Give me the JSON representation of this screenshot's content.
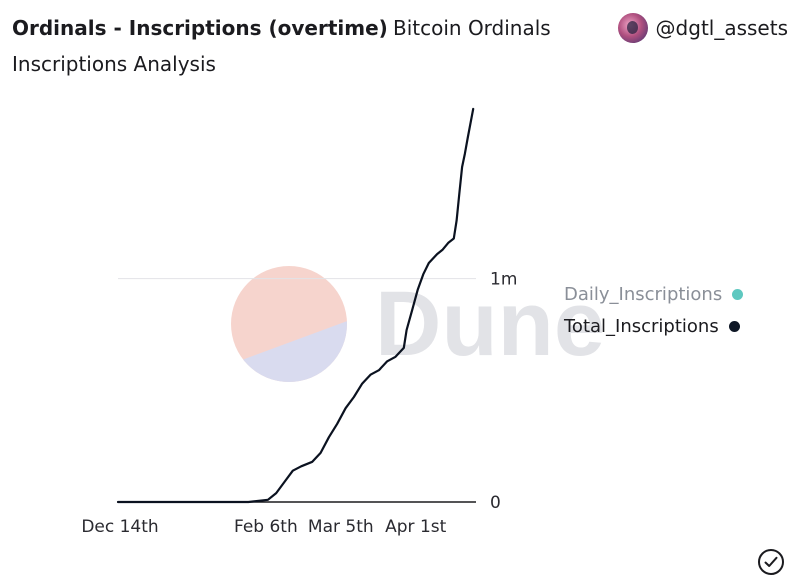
{
  "header": {
    "title": "Ordinals - Inscriptions (overtime)",
    "query_name": "Bitcoin Ordinals",
    "subtitle": "Inscriptions Analysis",
    "author": "@dgtl_assets"
  },
  "watermark": {
    "text": "Dune"
  },
  "colors": {
    "total_line": "#0b1220",
    "daily_dot": "#5ec8c0",
    "total_dot": "#0e1726",
    "logo_top": "#f4c6bd",
    "logo_bottom": "#cdd0ea"
  },
  "chart_data": {
    "type": "line",
    "title": "Ordinals - Inscriptions (overtime)",
    "xlabel": "",
    "ylabel": "",
    "x_ticks": [
      "Dec 14th",
      "Feb 6th",
      "Mar 5th",
      "Apr 1st"
    ],
    "x_range": [
      "2022-12-14",
      "2023-04-22"
    ],
    "ylim": [
      0,
      1.8
    ],
    "y_unit": "m",
    "y_ticks": [
      {
        "value": 0,
        "label": "0"
      },
      {
        "value": 1,
        "label": "1m"
      }
    ],
    "legend_position": "right",
    "grid": "horizontal",
    "series": [
      {
        "name": "Daily_Inscriptions",
        "visible": false,
        "points": []
      },
      {
        "name": "Total_Inscriptions",
        "visible": true,
        "points": [
          [
            "2022-12-14",
            0
          ],
          [
            "2023-01-10",
            0
          ],
          [
            "2023-01-20",
            0
          ],
          [
            "2023-01-30",
            0
          ],
          [
            "2023-02-06",
            0.01
          ],
          [
            "2023-02-09",
            0.04
          ],
          [
            "2023-02-12",
            0.09
          ],
          [
            "2023-02-15",
            0.14
          ],
          [
            "2023-02-18",
            0.16
          ],
          [
            "2023-02-22",
            0.18
          ],
          [
            "2023-02-25",
            0.22
          ],
          [
            "2023-02-28",
            0.29
          ],
          [
            "2023-03-03",
            0.35
          ],
          [
            "2023-03-06",
            0.42
          ],
          [
            "2023-03-09",
            0.47
          ],
          [
            "2023-03-12",
            0.53
          ],
          [
            "2023-03-15",
            0.57
          ],
          [
            "2023-03-18",
            0.59
          ],
          [
            "2023-03-21",
            0.63
          ],
          [
            "2023-03-24",
            0.65
          ],
          [
            "2023-03-27",
            0.69
          ],
          [
            "2023-03-28",
            0.77
          ],
          [
            "2023-03-30",
            0.86
          ],
          [
            "2023-04-01",
            0.95
          ],
          [
            "2023-04-03",
            1.02
          ],
          [
            "2023-04-05",
            1.07
          ],
          [
            "2023-04-08",
            1.11
          ],
          [
            "2023-04-10",
            1.13
          ],
          [
            "2023-04-12",
            1.16
          ],
          [
            "2023-04-14",
            1.18
          ],
          [
            "2023-04-15",
            1.26
          ],
          [
            "2023-04-16",
            1.38
          ],
          [
            "2023-04-17",
            1.5
          ],
          [
            "2023-04-18",
            1.56
          ],
          [
            "2023-04-19",
            1.63
          ],
          [
            "2023-04-21",
            1.76
          ]
        ]
      }
    ]
  }
}
